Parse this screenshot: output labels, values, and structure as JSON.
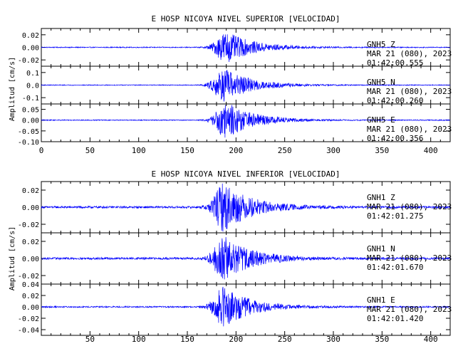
{
  "chart_data": [
    {
      "type": "line",
      "title": "E HOSP NICOYA NIVEL SUPERIOR [VELOCIDAD]",
      "ylabel": "Amplitud [cm/s]",
      "xlim": [
        0,
        420
      ],
      "xticks": [
        0,
        50,
        100,
        150,
        200,
        250,
        300,
        350,
        400
      ],
      "show_x_tick_labels": true,
      "traces": [
        {
          "station": "GNH5",
          "component": "Z",
          "date": "MAR 21 (080), 2023",
          "time": "01:42:00.555",
          "ylim": [
            -0.03,
            0.03
          ],
          "yticks": [
            -0.02,
            0.0,
            0.02
          ],
          "ytick_labels": [
            "-0.02",
            "0.00",
            "0.02"
          ],
          "peak": 0.025,
          "onset": 160,
          "peak_time": 190,
          "noise": 0.0007,
          "color": "#0000ff"
        },
        {
          "station": "GNH5",
          "component": "N",
          "date": "MAR 21 (080), 2023",
          "time": "01:42:00.260",
          "ylim": [
            -0.15,
            0.15
          ],
          "yticks": [
            -0.1,
            0.0,
            0.1
          ],
          "ytick_labels": [
            "-0.1",
            "0.0",
            "0.1"
          ],
          "peak": 0.13,
          "onset": 160,
          "peak_time": 188,
          "noise": 0.003,
          "color": "#0000ff"
        },
        {
          "station": "GNH5",
          "component": "E",
          "date": "MAR 21 (080), 2023",
          "time": "01:42:00.356",
          "ylim": [
            -0.1,
            0.075
          ],
          "yticks": [
            -0.1,
            -0.05,
            0.0,
            0.05
          ],
          "ytick_labels": [
            "-0.10",
            "-0.05",
            "0.00",
            "0.05"
          ],
          "peak": 0.085,
          "onset": 160,
          "peak_time": 190,
          "noise": 0.002,
          "color": "#0000ff"
        }
      ]
    },
    {
      "type": "line",
      "title": "E HOSP NICOYA NIVEL INFERIOR [VELOCIDAD]",
      "ylabel": "Amplitud [cm/s]",
      "xlim": [
        0,
        420
      ],
      "xticks": [
        50,
        100,
        150,
        200,
        250,
        300,
        350,
        400
      ],
      "show_x_tick_labels": true,
      "traces": [
        {
          "station": "GNH1",
          "component": "Z",
          "date": "MAR 21 (080), 2023",
          "time": "01:42:01.275",
          "ylim": [
            -0.03,
            0.03
          ],
          "yticks": [
            -0.02,
            0.0,
            0.02
          ],
          "ytick_labels": [
            "-0.02",
            "0.00",
            "0.02"
          ],
          "peak": 0.028,
          "onset": 160,
          "peak_time": 188,
          "noise": 0.0012,
          "color": "#0000ff"
        },
        {
          "station": "GNH1",
          "component": "N",
          "date": "MAR 21 (080), 2023",
          "time": "01:42:01.670",
          "ylim": [
            -0.03,
            0.03
          ],
          "yticks": [
            -0.02,
            0.0,
            0.02
          ],
          "ytick_labels": [
            "-0.02",
            "0.00",
            "0.02"
          ],
          "peak": 0.026,
          "onset": 160,
          "peak_time": 188,
          "noise": 0.0012,
          "color": "#0000ff"
        },
        {
          "station": "GNH1",
          "component": "E",
          "date": "MAR 21 (080), 2023",
          "time": "01:42:01.420",
          "ylim": [
            -0.05,
            0.04
          ],
          "yticks": [
            -0.04,
            -0.02,
            0.0,
            0.02,
            0.04
          ],
          "ytick_labels": [
            "-0.04",
            "-0.02",
            "0.00",
            "0.02",
            "0.04"
          ],
          "peak": 0.035,
          "onset": 160,
          "peak_time": 188,
          "noise": 0.0012,
          "color": "#0000ff"
        }
      ]
    }
  ]
}
